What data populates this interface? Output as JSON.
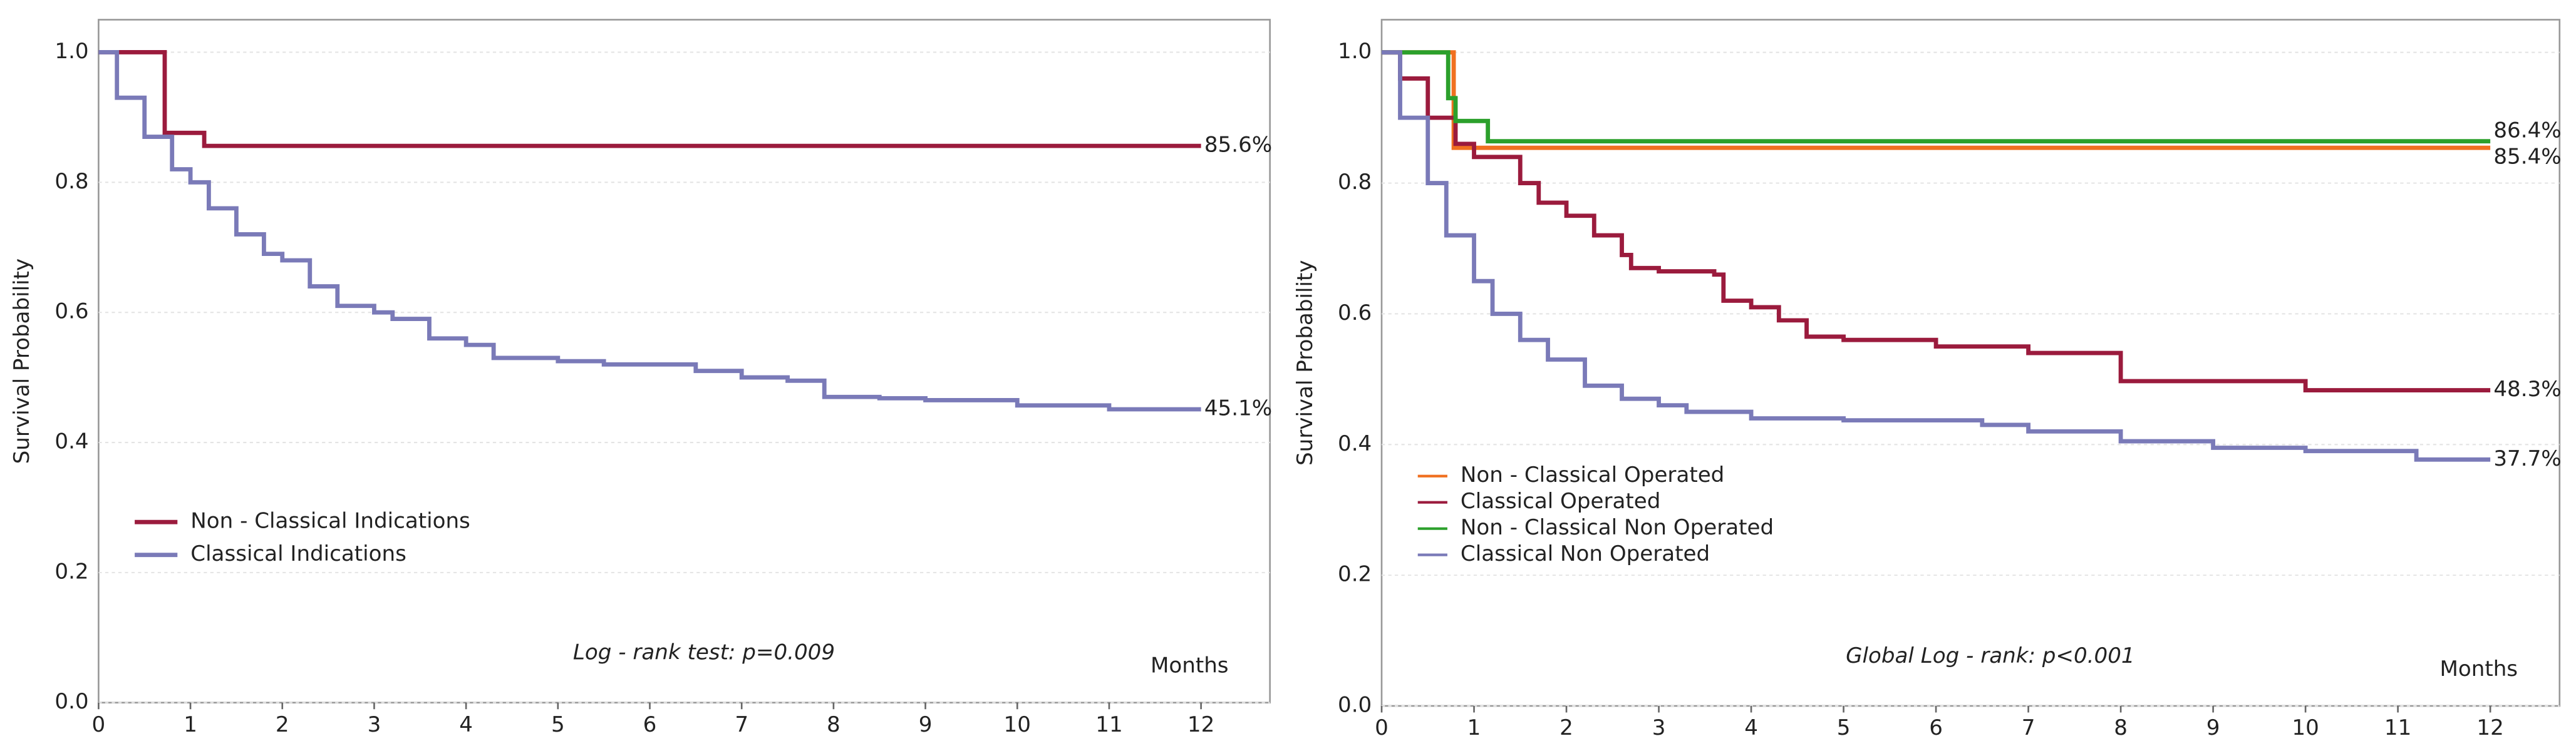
{
  "chart_data": [
    {
      "type": "step",
      "y_label": "Survival Probability",
      "x_label": "Months",
      "annotation": "Log - rank test: p=0.009",
      "xlim": [
        0,
        12.75
      ],
      "ylim": [
        0,
        1.05
      ],
      "grid": true,
      "legend": "lower left",
      "xticks": [
        0,
        1,
        2,
        3,
        4,
        5,
        6,
        7,
        8,
        9,
        10,
        11,
        12
      ],
      "yticks": [
        {
          "value": 0,
          "label": "0.0"
        },
        0.2,
        0.4,
        0.6,
        0.8,
        {
          "value": 1,
          "label": "1.0"
        }
      ],
      "series": [
        {
          "name": "Non - Classical Indications",
          "color": "#9b1b3d",
          "label_color": "#9b1b3d",
          "end_label": "85.6%",
          "x": [
            0,
            0.72,
            1.15,
            12
          ],
          "values": [
            1,
            0.876,
            0.856,
            0.856
          ]
        },
        {
          "name": "Classical Indications",
          "color": "#7a7ab8",
          "label_color": "#1f3a7a",
          "end_label": "45.1%",
          "x": [
            0,
            0.2,
            0.5,
            0.8,
            1,
            1.2,
            1.5,
            1.8,
            2,
            2.3,
            2.6,
            3,
            3.2,
            3.6,
            4,
            4.3,
            5,
            5.5,
            6,
            6.5,
            7,
            7.5,
            7.9,
            8.5,
            9,
            10,
            11,
            12
          ],
          "values": [
            1,
            0.93,
            0.87,
            0.82,
            0.8,
            0.76,
            0.72,
            0.69,
            0.68,
            0.64,
            0.61,
            0.6,
            0.59,
            0.56,
            0.55,
            0.53,
            0.525,
            0.52,
            0.52,
            0.51,
            0.5,
            0.495,
            0.47,
            0.468,
            0.465,
            0.457,
            0.451,
            0.451
          ]
        }
      ]
    },
    {
      "type": "step",
      "y_label": "Survival Probability",
      "x_label": "Months",
      "annotation": "Global Log - rank: p<0.001",
      "xlim": [
        0,
        12.75
      ],
      "ylim": [
        0,
        1.05
      ],
      "grid": true,
      "legend": "lower left",
      "xticks": [
        0,
        1,
        2,
        3,
        4,
        5,
        6,
        7,
        8,
        9,
        10,
        11,
        12
      ],
      "yticks": [
        {
          "value": 0,
          "label": "0.0"
        },
        0.2,
        0.4,
        0.6,
        0.8,
        {
          "value": 1,
          "label": "1.0"
        }
      ],
      "series": [
        {
          "name": "Non - Classical Operated",
          "color": "#f07020",
          "label_color": "#e86a1a",
          "end_label": "85.4%",
          "x": [
            0,
            0.78,
            12
          ],
          "values": [
            1,
            0.854,
            0.854
          ]
        },
        {
          "name": "Classical Operated",
          "color": "#9b1b3d",
          "label_color": "#9b1b3d",
          "end_label": "48.3%",
          "x": [
            0,
            0.2,
            0.5,
            0.8,
            1,
            1.5,
            1.7,
            2,
            2.3,
            2.6,
            2.7,
            3,
            3.6,
            3.7,
            4,
            4.3,
            4.6,
            5,
            6,
            7,
            8,
            10,
            12
          ],
          "values": [
            1,
            0.96,
            0.9,
            0.86,
            0.84,
            0.8,
            0.77,
            0.75,
            0.72,
            0.69,
            0.67,
            0.665,
            0.66,
            0.62,
            0.61,
            0.59,
            0.565,
            0.56,
            0.55,
            0.54,
            0.497,
            0.483,
            0.483
          ]
        },
        {
          "name": "Non - Classical Non Operated",
          "color": "#2ca02c",
          "label_color": "#3a8a2a",
          "end_label": "86.4%",
          "x": [
            0,
            0.72,
            0.8,
            1.15,
            12
          ],
          "values": [
            1,
            0.93,
            0.895,
            0.864,
            0.864
          ]
        },
        {
          "name": "Classical Non Operated",
          "color": "#7a7ab8",
          "label_color": "#1f3a7a",
          "end_label": "37.7%",
          "x": [
            0,
            0.2,
            0.5,
            0.7,
            1,
            1.2,
            1.5,
            1.8,
            2.2,
            2.6,
            3,
            3.3,
            4,
            5,
            6,
            6.5,
            7,
            8,
            9,
            10,
            11.2,
            12
          ],
          "values": [
            1,
            0.9,
            0.8,
            0.72,
            0.65,
            0.6,
            0.56,
            0.53,
            0.49,
            0.47,
            0.46,
            0.45,
            0.44,
            0.437,
            0.437,
            0.43,
            0.42,
            0.405,
            0.395,
            0.39,
            0.377,
            0.377
          ]
        }
      ]
    }
  ]
}
